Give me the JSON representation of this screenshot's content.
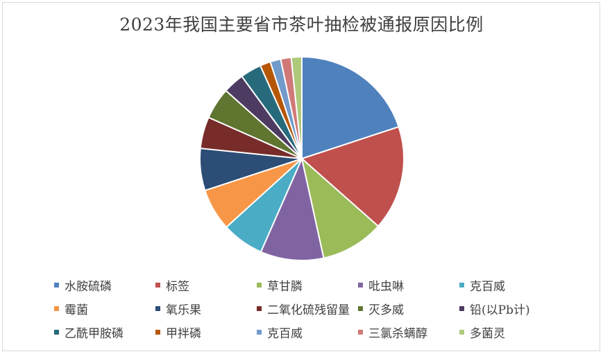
{
  "chart_data": {
    "type": "pie",
    "title": "2023年我国主要省市茶叶抽检被通报原因比例",
    "legend_position": "bottom",
    "categories": [
      "水胺硫磷",
      "标签",
      "草甘膦",
      "吡虫啉",
      "克百威",
      "霉菌",
      "氧乐果",
      "二氧化硫残留量",
      "灭多威",
      "铅(以Pb计)",
      "乙酰甲胺磷",
      "甲拌磷",
      "克百威",
      "三氯杀螨醇",
      "多菌灵"
    ],
    "values": [
      20.3,
      16.9,
      10.2,
      10.2,
      6.8,
      6.8,
      6.8,
      5.1,
      5.1,
      3.4,
      3.4,
      1.7,
      1.7,
      1.7,
      1.7
    ],
    "colors": [
      "#4f81bd",
      "#c0504d",
      "#9bbb59",
      "#8064a2",
      "#4bacc6",
      "#f79646",
      "#2c4d75",
      "#772c2a",
      "#5f7530",
      "#4d3b62",
      "#276a7c",
      "#b65708",
      "#729aca",
      "#d07978",
      "#afc97a"
    ]
  }
}
